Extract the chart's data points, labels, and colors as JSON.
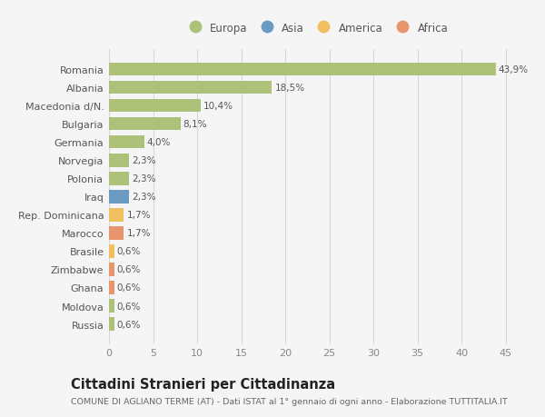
{
  "countries": [
    "Romania",
    "Albania",
    "Macedonia d/N.",
    "Bulgaria",
    "Germania",
    "Norvegia",
    "Polonia",
    "Iraq",
    "Rep. Dominicana",
    "Marocco",
    "Brasile",
    "Zimbabwe",
    "Ghana",
    "Moldova",
    "Russia"
  ],
  "values": [
    43.9,
    18.5,
    10.4,
    8.1,
    4.0,
    2.3,
    2.3,
    2.3,
    1.7,
    1.7,
    0.6,
    0.6,
    0.6,
    0.6,
    0.6
  ],
  "labels": [
    "43,9%",
    "18,5%",
    "10,4%",
    "8,1%",
    "4,0%",
    "2,3%",
    "2,3%",
    "2,3%",
    "1,7%",
    "1,7%",
    "0,6%",
    "0,6%",
    "0,6%",
    "0,6%",
    "0,6%"
  ],
  "continents": [
    "Europa",
    "Europa",
    "Europa",
    "Europa",
    "Europa",
    "Europa",
    "Europa",
    "Asia",
    "America",
    "Africa",
    "America",
    "Africa",
    "Africa",
    "Europa",
    "Europa"
  ],
  "colors": {
    "Europa": "#adc178",
    "Asia": "#6b9bc3",
    "America": "#f0c060",
    "Africa": "#e8956d"
  },
  "bg_color": "#f5f5f5",
  "plot_bg_color": "#f5f5f5",
  "grid_color": "#d8d8d8",
  "title": "Cittadini Stranieri per Cittadinanza",
  "subtitle": "COMUNE DI AGLIANO TERME (AT) - Dati ISTAT al 1° gennaio di ogni anno - Elaborazione TUTTITALIA.IT",
  "xlim": [
    0,
    47
  ],
  "xticks": [
    0,
    5,
    10,
    15,
    20,
    25,
    30,
    35,
    40,
    45
  ],
  "legend_order": [
    "Europa",
    "Asia",
    "America",
    "Africa"
  ]
}
